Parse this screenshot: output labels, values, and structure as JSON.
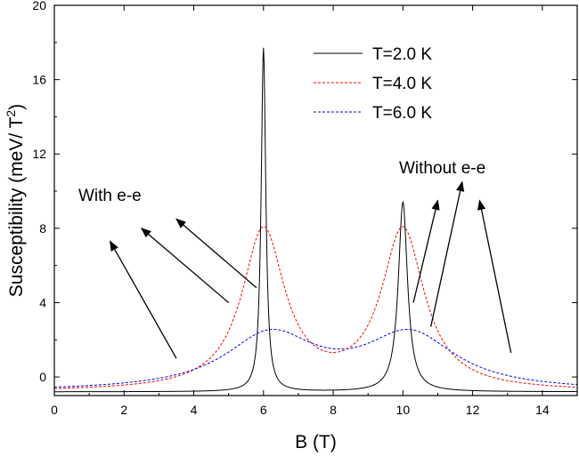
{
  "chart_data": {
    "type": "line",
    "xlabel": "B (T)",
    "ylabel": "Susceptibility (meV/ T²)",
    "xlim": [
      0,
      15
    ],
    "ylim": [
      -1,
      20
    ],
    "xticks": [
      "0",
      "2",
      "4",
      "6",
      "8",
      "10",
      "12",
      "14"
    ],
    "yticks": [
      "0",
      "4",
      "8",
      "12",
      "16",
      "20"
    ],
    "grid": false,
    "legend_position": "top-right",
    "series": [
      {
        "name": "T=2.0 K",
        "color": "#000000",
        "dash": "solid",
        "peaks": [
          {
            "center": 6.0,
            "height": 17.7,
            "width": 0.08
          },
          {
            "center": 10.0,
            "height": 9.4,
            "width": 0.16
          }
        ],
        "baseline": -0.8
      },
      {
        "name": "T=4.0 K",
        "color": "#ff0000",
        "dash": "dashed",
        "peaks": [
          {
            "center": 6.0,
            "height": 7.8,
            "width": 0.75
          },
          {
            "center": 10.0,
            "height": 7.8,
            "width": 0.75
          }
        ],
        "baseline": -0.8
      },
      {
        "name": "T=6.0 K",
        "color": "#0000ff",
        "dash": "dashed",
        "peaks": [
          {
            "center": 6.2,
            "height": 2.15,
            "width": 1.6
          },
          {
            "center": 10.2,
            "height": 2.15,
            "width": 1.6
          }
        ],
        "baseline": -0.8
      }
    ],
    "annotations": [
      {
        "text": "With e-e",
        "arrows": [
          {
            "from": [
              5.8,
              4.8
            ],
            "to": [
              3.5,
              8.5
            ]
          },
          {
            "from": [
              5.0,
              4.0
            ],
            "to": [
              2.5,
              8.0
            ]
          },
          {
            "from": [
              3.5,
              1.0
            ],
            "to": [
              1.6,
              7.3
            ]
          }
        ]
      },
      {
        "text": "Without e-e",
        "arrows": [
          {
            "from": [
              10.3,
              4.0
            ],
            "to": [
              11.0,
              9.5
            ]
          },
          {
            "from": [
              10.8,
              2.7
            ],
            "to": [
              11.7,
              10.5
            ]
          },
          {
            "from": [
              13.1,
              1.3
            ],
            "to": [
              12.2,
              9.5
            ]
          }
        ]
      }
    ]
  }
}
